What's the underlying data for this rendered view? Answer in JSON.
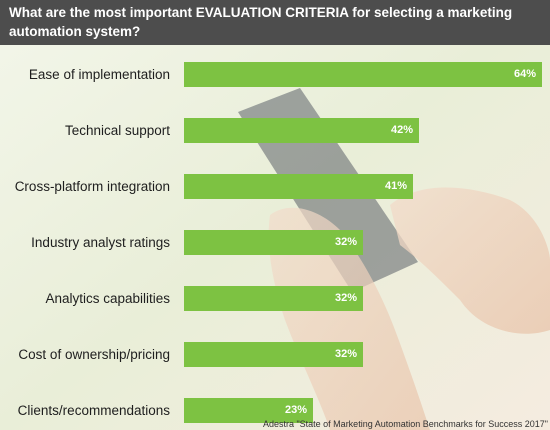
{
  "chart_data": {
    "type": "bar",
    "orientation": "horizontal",
    "title": "What are the most important EVALUATION CRITERIA for selecting a marketing automation system?",
    "categories": [
      "Ease of implementation",
      "Technical support",
      "Cross-platform integration",
      "Industry analyst ratings",
      "Analytics capabilities",
      "Cost of ownership/pricing",
      "Clients/recommendations"
    ],
    "values": [
      64,
      42,
      41,
      32,
      32,
      32,
      23
    ],
    "value_labels": [
      "64%",
      "42%",
      "41%",
      "32%",
      "32%",
      "32%",
      "23%"
    ],
    "unit": "%",
    "bar_color": "#7dc242",
    "source": "Adestra \"State of Marketing Automation Benchmarks for Success 2017\""
  },
  "colors": {
    "header_bg": "#4d4d4d",
    "bar": "#7dc242"
  }
}
